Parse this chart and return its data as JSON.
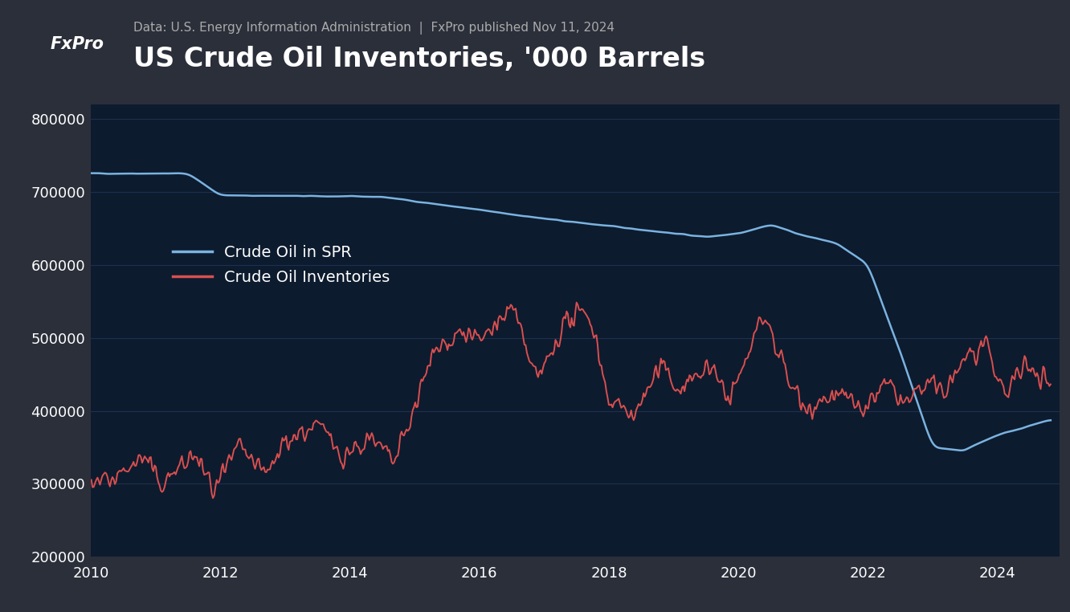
{
  "title": "US Crude Oil Inventories, '000 Barrels",
  "subtitle": "Data: U.S. Energy Information Administration  |  FxPro published Nov 11, 2024",
  "header_bg_color": "#2b2f3a",
  "plot_bg_color": "#0d1b2e",
  "grid_color": "#1e3050",
  "text_color": "#ffffff",
  "subtitle_color": "#aaaaaa",
  "spr_color": "#7ab3e0",
  "inv_color": "#d94f4f",
  "legend_labels": [
    "Crude Oil in SPR",
    "Crude Oil Inventories"
  ],
  "ylim": [
    200000,
    820000
  ],
  "yticks": [
    200000,
    300000,
    400000,
    500000,
    600000,
    700000,
    800000
  ],
  "xlabel_years": [
    2010,
    2012,
    2014,
    2016,
    2018,
    2020,
    2022,
    2024
  ],
  "fxpro_box_color": "#cc1111",
  "fxpro_text": "FxPro",
  "title_fontsize": 24,
  "subtitle_fontsize": 11,
  "tick_fontsize": 13,
  "legend_fontsize": 14
}
